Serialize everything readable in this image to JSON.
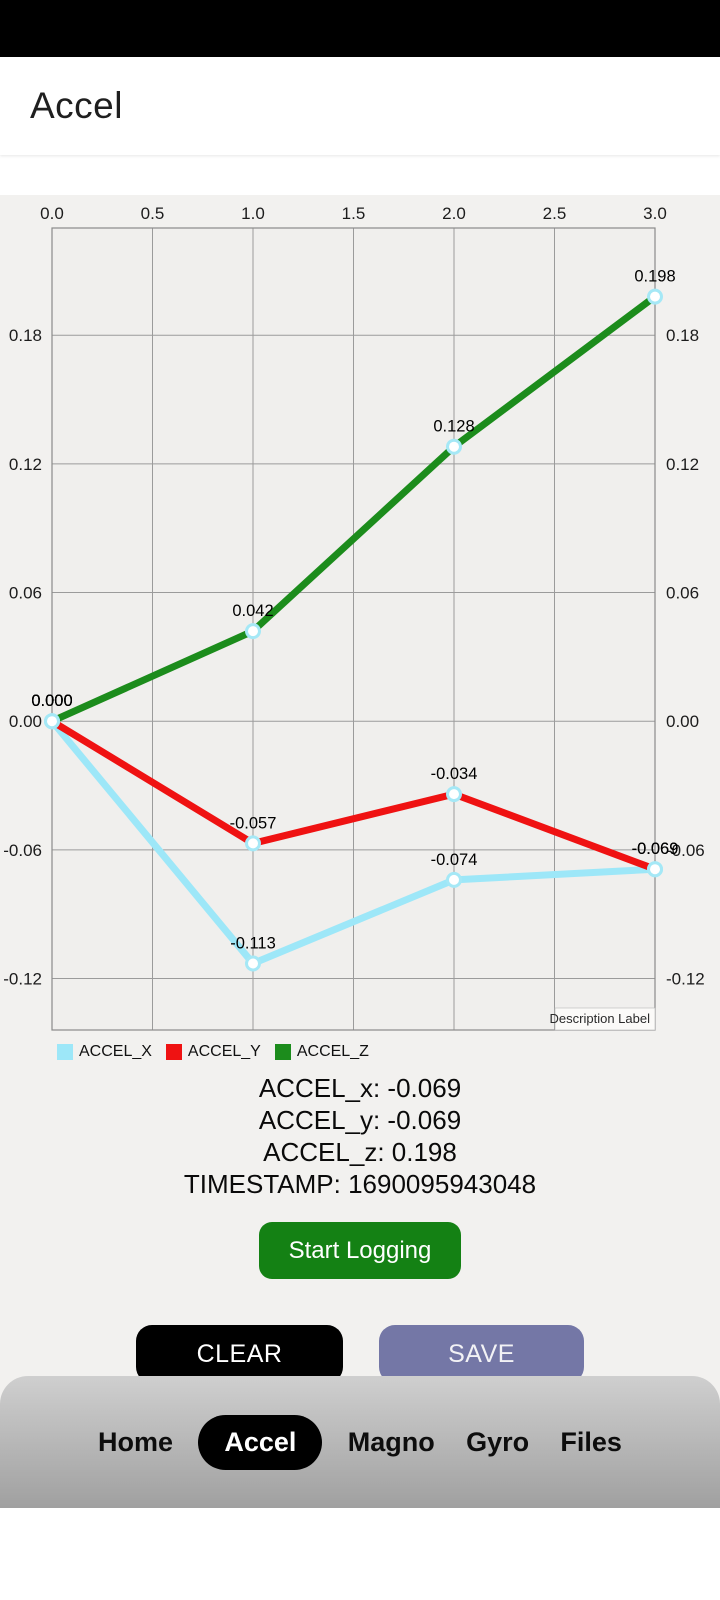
{
  "header": {
    "title": "Accel"
  },
  "chart_data": {
    "type": "line",
    "x": [
      0,
      1,
      2,
      3
    ],
    "xlim": [
      0,
      3
    ],
    "ylim": [
      -0.144,
      0.23
    ],
    "x_ticks": [
      "0.0",
      "0.5",
      "1.0",
      "1.5",
      "2.0",
      "2.5",
      "3.0"
    ],
    "x_tick_values": [
      0,
      0.5,
      1,
      1.5,
      2,
      2.5,
      3
    ],
    "y_ticks": [
      "0.18",
      "0.12",
      "0.06",
      "0.00",
      "-0.06",
      "-0.12"
    ],
    "y_tick_values": [
      0.18,
      0.12,
      0.06,
      0,
      -0.06,
      -0.12
    ],
    "grid": true,
    "legend_position": "bottom-left",
    "marker_ring_color": "#a5e8f6",
    "description_label": "Description Label",
    "series": [
      {
        "name": "ACCEL_X",
        "color": "#9de7f8",
        "values": [
          0.0,
          -0.113,
          -0.074,
          -0.069
        ],
        "point_labels": [
          "0.000",
          "-0.113",
          "-0.074",
          "-0.069"
        ]
      },
      {
        "name": "ACCEL_Y",
        "color": "#ef1212",
        "values": [
          0.0,
          -0.057,
          -0.034,
          -0.069
        ],
        "point_labels": [
          "0.000",
          "-0.057",
          "-0.034",
          "-0.069"
        ]
      },
      {
        "name": "ACCEL_Z",
        "color": "#1c8c1c",
        "values": [
          0.0,
          0.042,
          0.128,
          0.198
        ],
        "point_labels": [
          "0.000",
          "0.042",
          "0.128",
          "0.198"
        ]
      }
    ]
  },
  "readouts": {
    "lines": [
      "ACCEL_x: -0.069",
      "ACCEL_y: -0.069",
      "ACCEL_z: 0.198",
      "TIMESTAMP: 1690095943048"
    ]
  },
  "buttons": {
    "start_logging": "Start Logging",
    "clear": "CLEAR",
    "save": "SAVE"
  },
  "nav": {
    "items": [
      {
        "label": "Home",
        "active": false
      },
      {
        "label": "Accel",
        "active": true
      },
      {
        "label": "Magno",
        "active": false
      },
      {
        "label": "Gyro",
        "active": false
      },
      {
        "label": "Files",
        "active": false
      }
    ]
  },
  "colors": {
    "start_button": "#148114",
    "clear_button": "#000000",
    "save_button": "#7477a6",
    "chart_plot_bg": "#f0efed",
    "grid_line": "#9b9b9b"
  }
}
